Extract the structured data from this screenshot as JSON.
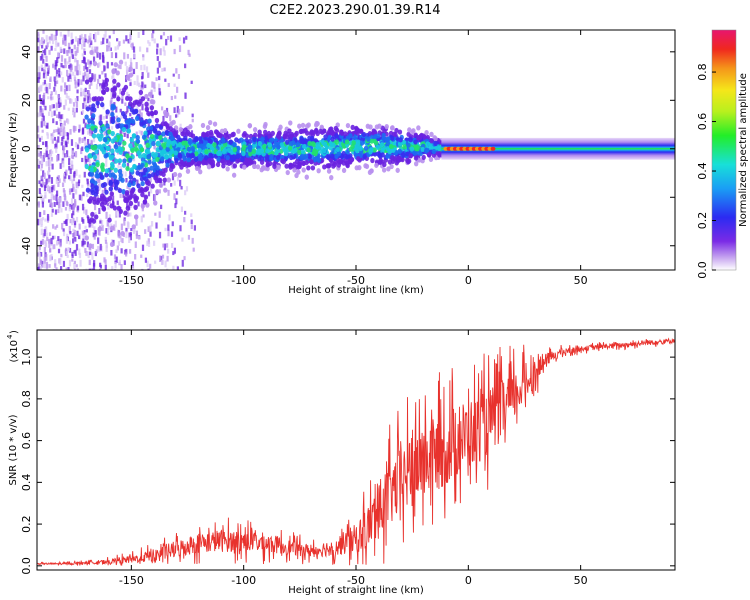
{
  "title": "C2E2.2023.290.01.39.R14",
  "chart_data": [
    {
      "type": "heatmap",
      "name": "spectrogram",
      "xlabel": "Height of straight line (km)",
      "ylabel": "Frequency (Hz)",
      "xlim": [
        -192,
        92
      ],
      "ylim": [
        -50,
        49
      ],
      "xticks": [
        -150,
        -100,
        -50,
        0,
        50
      ],
      "yticks": [
        -40,
        -20,
        0,
        20,
        40
      ],
      "colorbar": {
        "label": "Normalized spectral amplitude",
        "range": [
          0.0,
          0.97
        ],
        "ticks": [
          0.0,
          0.2,
          0.4,
          0.6,
          0.8
        ],
        "colormap": "rainbow"
      },
      "description_values": {
        "x": [
          -190,
          -170,
          -150,
          -130,
          -110,
          -90,
          -70,
          -50,
          -30,
          -20,
          -10,
          0,
          10,
          30,
          50,
          70,
          90
        ],
        "band_center_hz": [
          0,
          0,
          0,
          0,
          0,
          0,
          0,
          1,
          1,
          1,
          0,
          0,
          0,
          0,
          0,
          0,
          0
        ],
        "band_halfwidth_hz": [
          40,
          40,
          35,
          10,
          9,
          9,
          10,
          10,
          9,
          6,
          3,
          3,
          3,
          3,
          3,
          3,
          3
        ],
        "peak_amplitude": [
          0.2,
          0.2,
          0.3,
          0.45,
          0.5,
          0.55,
          0.6,
          0.6,
          0.55,
          0.5,
          0.95,
          0.95,
          0.9,
          0.5,
          0.5,
          0.5,
          0.5
        ]
      }
    },
    {
      "type": "line",
      "name": "snr",
      "xlabel": "Height of straight line (km)",
      "ylabel": "SNR (10 * v/v)",
      "yscale_label": "(x10",
      "yscale_exp": "4",
      "xlim": [
        -192,
        92
      ],
      "ylim": [
        -0.02,
        1.13
      ],
      "xticks": [
        -150,
        -100,
        -50,
        0,
        50
      ],
      "yticks": [
        0.0,
        0.2,
        0.4,
        0.6,
        0.8,
        1.0
      ],
      "ytick_labels": [
        "0.0",
        "0.2",
        "0.4",
        "0.6",
        "0.8",
        "1.0"
      ],
      "color": "#e8322d",
      "x": [
        -192,
        -180,
        -170,
        -160,
        -150,
        -140,
        -130,
        -120,
        -110,
        -100,
        -90,
        -80,
        -70,
        -60,
        -50,
        -45,
        -40,
        -35,
        -30,
        -25,
        -20,
        -15,
        -10,
        -5,
        0,
        5,
        10,
        15,
        20,
        25,
        30,
        35,
        40,
        50,
        60,
        70,
        80,
        92
      ],
      "y": [
        0.01,
        0.01,
        0.015,
        0.02,
        0.03,
        0.05,
        0.08,
        0.11,
        0.12,
        0.12,
        0.11,
        0.09,
        0.07,
        0.09,
        0.13,
        0.18,
        0.27,
        0.34,
        0.41,
        0.46,
        0.5,
        0.53,
        0.56,
        0.6,
        0.63,
        0.66,
        0.7,
        0.74,
        0.81,
        0.87,
        0.93,
        0.99,
        1.02,
        1.04,
        1.05,
        1.06,
        1.07,
        1.08
      ],
      "noise": [
        0.005,
        0.008,
        0.01,
        0.02,
        0.03,
        0.05,
        0.07,
        0.08,
        0.09,
        0.09,
        0.08,
        0.06,
        0.05,
        0.07,
        0.12,
        0.16,
        0.22,
        0.26,
        0.28,
        0.3,
        0.3,
        0.3,
        0.3,
        0.3,
        0.28,
        0.27,
        0.26,
        0.24,
        0.2,
        0.15,
        0.1,
        0.05,
        0.03,
        0.02,
        0.02,
        0.02,
        0.02,
        0.02
      ]
    }
  ]
}
